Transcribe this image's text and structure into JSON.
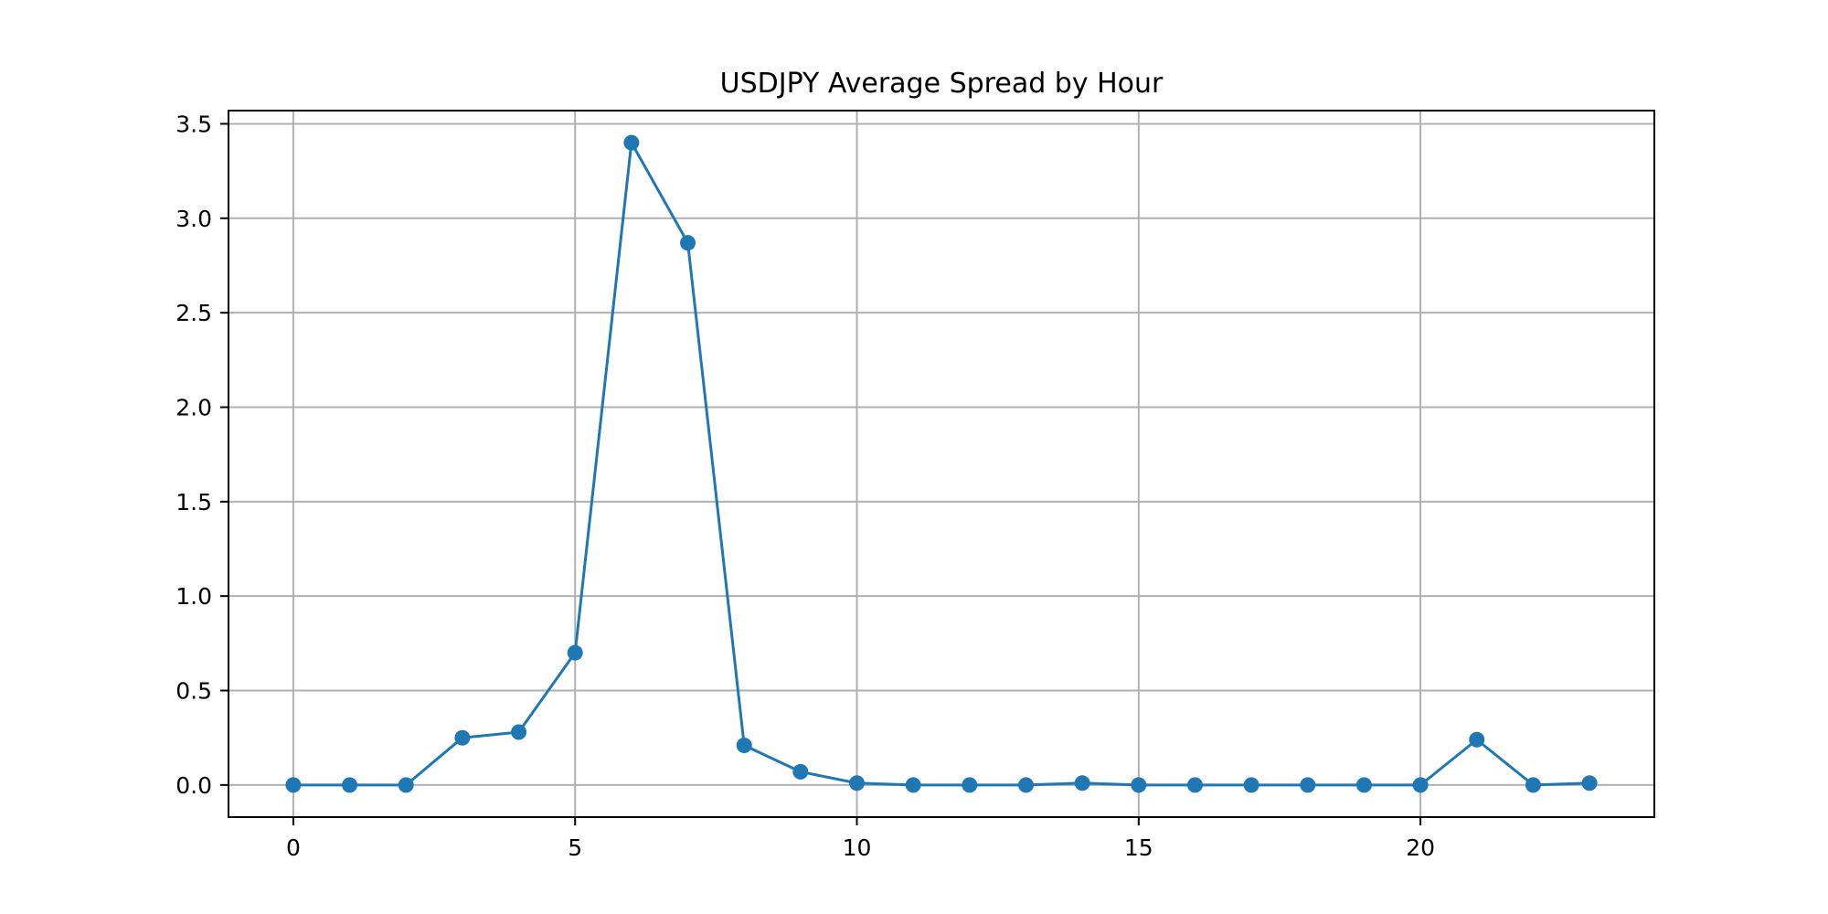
{
  "chart_data": {
    "type": "line",
    "title": "USDJPY Average Spread by Hour",
    "xlabel": "",
    "ylabel": "",
    "x": [
      0,
      1,
      2,
      3,
      4,
      5,
      6,
      7,
      8,
      9,
      10,
      11,
      12,
      13,
      14,
      15,
      16,
      17,
      18,
      19,
      20,
      21,
      22,
      23
    ],
    "series": [
      {
        "name": "",
        "color": "#1f77b4",
        "marker": "circle",
        "values": [
          0.0,
          0.0,
          0.0,
          0.25,
          0.28,
          0.7,
          3.4,
          2.87,
          0.21,
          0.07,
          0.01,
          0.0,
          0.0,
          0.0,
          0.01,
          0.0,
          0.0,
          0.0,
          0.0,
          0.0,
          0.0,
          0.24,
          0.0,
          0.01
        ]
      }
    ],
    "xlim": [
      -1.15,
      24.15
    ],
    "ylim": [
      -0.17,
      3.57
    ],
    "xticks": [
      0,
      5,
      10,
      15,
      20
    ],
    "xtick_labels": [
      "0",
      "5",
      "10",
      "15",
      "20"
    ],
    "yticks": [
      0.0,
      0.5,
      1.0,
      1.5,
      2.0,
      2.5,
      3.0,
      3.5
    ],
    "ytick_labels": [
      "0.0",
      "0.5",
      "1.0",
      "1.5",
      "2.0",
      "2.5",
      "3.0",
      "3.5"
    ],
    "grid": true,
    "legend": "none"
  }
}
